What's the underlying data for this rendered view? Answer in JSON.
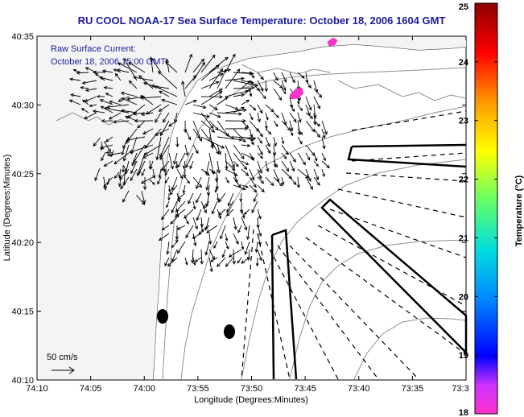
{
  "title": "RU COOL  NOAA-17  Sea Surface Temperature:  October 18, 2006 1604 GMT",
  "annotation": {
    "line1": "Raw Surface Current:",
    "line2": "October 18, 2006 15:00 GMT"
  },
  "scale_label": "50 cm/s",
  "axes": {
    "xlabel": "Longitude (Degrees:Minutes)",
    "ylabel": "Latitude (Degrees:Minutes)",
    "x_ticks": [
      "74:10",
      "74:05",
      "74:00",
      "73:55",
      "73:50",
      "73:45",
      "73:40",
      "73:35",
      "73:3"
    ],
    "y_ticks": [
      "40:35",
      "40:30",
      "40:25",
      "40:20",
      "40:15",
      "40:10"
    ]
  },
  "colorbar": {
    "label": "Temperature (°C)",
    "ticks": [
      "25",
      "24",
      "23",
      "22",
      "21",
      "20",
      "19",
      "18"
    ],
    "range": [
      18,
      25
    ]
  },
  "colors": {
    "title": "#1a1a9c",
    "land": "#ffffff",
    "ocean_background": "#ffffff",
    "contour": "#8a8a8a",
    "hot_spot": "#ff33cc"
  }
}
